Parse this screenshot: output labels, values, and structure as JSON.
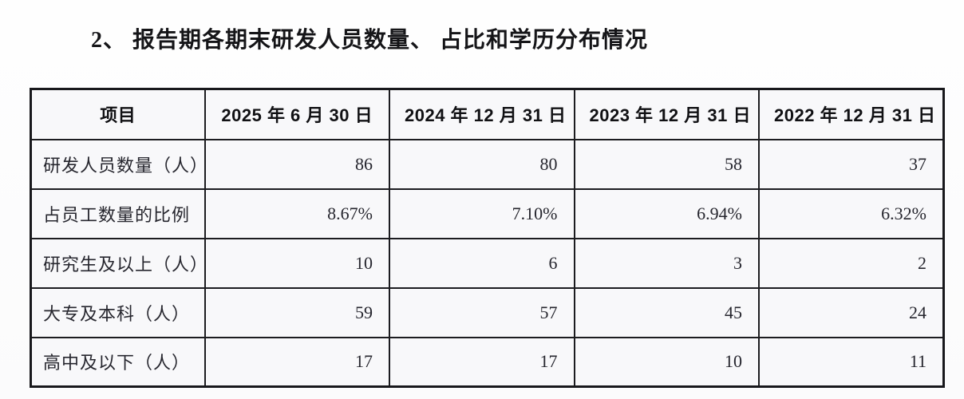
{
  "title": "2、 报告期各期末研发人员数量、 占比和学历分布情况",
  "table": {
    "columns": [
      "项目",
      "2025 年 6 月 30 日",
      "2024 年 12 月 31 日",
      "2023 年 12 月 31 日",
      "2022 年 12 月 31 日"
    ],
    "rows": [
      {
        "label": "研发人员数量（人）",
        "values": [
          "86",
          "80",
          "58",
          "37"
        ]
      },
      {
        "label": "占员工数量的比例",
        "values": [
          "8.67%",
          "7.10%",
          "6.94%",
          "6.32%"
        ]
      },
      {
        "label": "研究生及以上（人）",
        "values": [
          "10",
          "6",
          "3",
          "2"
        ]
      },
      {
        "label": "大专及本科（人）",
        "values": [
          "59",
          "57",
          "45",
          "24"
        ]
      },
      {
        "label": "高中及以下（人）",
        "values": [
          "17",
          "17",
          "10",
          "11"
        ]
      }
    ]
  },
  "colors": {
    "border": "#1c1c20",
    "cell_background": "#f8f8fa",
    "page_background": "#fdfdfe",
    "text": "#26262e"
  }
}
